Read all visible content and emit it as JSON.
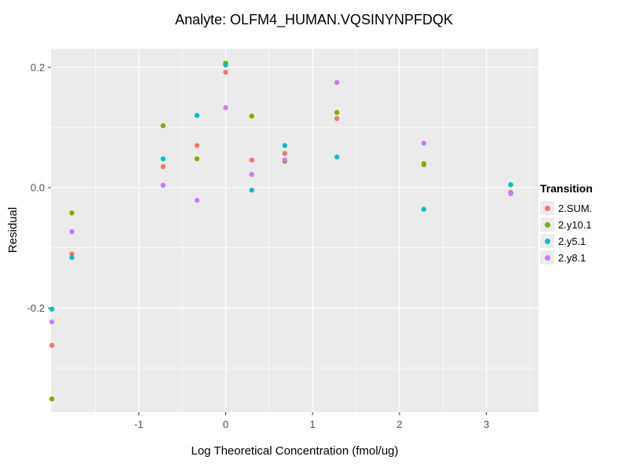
{
  "chart_data": {
    "type": "scatter",
    "title": "Analyte: OLFM4_HUMAN.VQSINYNPFDQK",
    "xlabel": "Log Theoretical Concentration (fmol/ug)",
    "ylabel": "Residual",
    "legend_title": "Transition",
    "panel_bg": "#EBEBEB",
    "grid_color": "#FFFFFF",
    "tick_label_color": "#4D4D4D",
    "tick_mark_color": "#333333",
    "xlim": [
      -2.01,
      3.6
    ],
    "ylim": [
      -0.373,
      0.231
    ],
    "x_ticks": [
      -1,
      0,
      1,
      2,
      3
    ],
    "x_tick_labels": [
      "-1",
      "0",
      "1",
      "2",
      "3"
    ],
    "x_minor_ticks": [
      -1.5,
      -0.5,
      0.5,
      1.5,
      2.5,
      3.5
    ],
    "y_ticks": [
      0.2,
      0.0,
      -0.2
    ],
    "y_tick_labels": [
      "0.2",
      "0.0",
      "-0.2"
    ],
    "y_minor_ticks": [
      0.1,
      -0.1,
      -0.3
    ],
    "x": [
      -2.0,
      -1.77,
      -0.72,
      -0.33,
      0.0,
      0.3,
      0.68,
      1.28,
      2.28,
      3.28
    ],
    "series": [
      {
        "name": "2.SUM.",
        "color": "#F8766D",
        "values": [
          -0.262,
          -0.11,
          0.035,
          0.07,
          0.192,
          0.046,
          0.057,
          0.115,
          0.038,
          -0.008
        ]
      },
      {
        "name": "2.y10.1",
        "color": "#7CAE00",
        "values": [
          -0.351,
          -0.042,
          0.103,
          0.048,
          0.207,
          0.119,
          0.044,
          0.125,
          0.04,
          -0.009
        ]
      },
      {
        "name": "2.y5.1",
        "color": "#00BFC4",
        "values": [
          -0.202,
          -0.116,
          0.048,
          0.12,
          0.204,
          -0.004,
          0.07,
          0.051,
          -0.036,
          0.005
        ]
      },
      {
        "name": "2.y8.1",
        "color": "#C77CFF",
        "values": [
          -0.223,
          -0.073,
          0.004,
          -0.021,
          0.133,
          0.022,
          0.046,
          0.175,
          0.074,
          -0.01
        ]
      }
    ]
  }
}
